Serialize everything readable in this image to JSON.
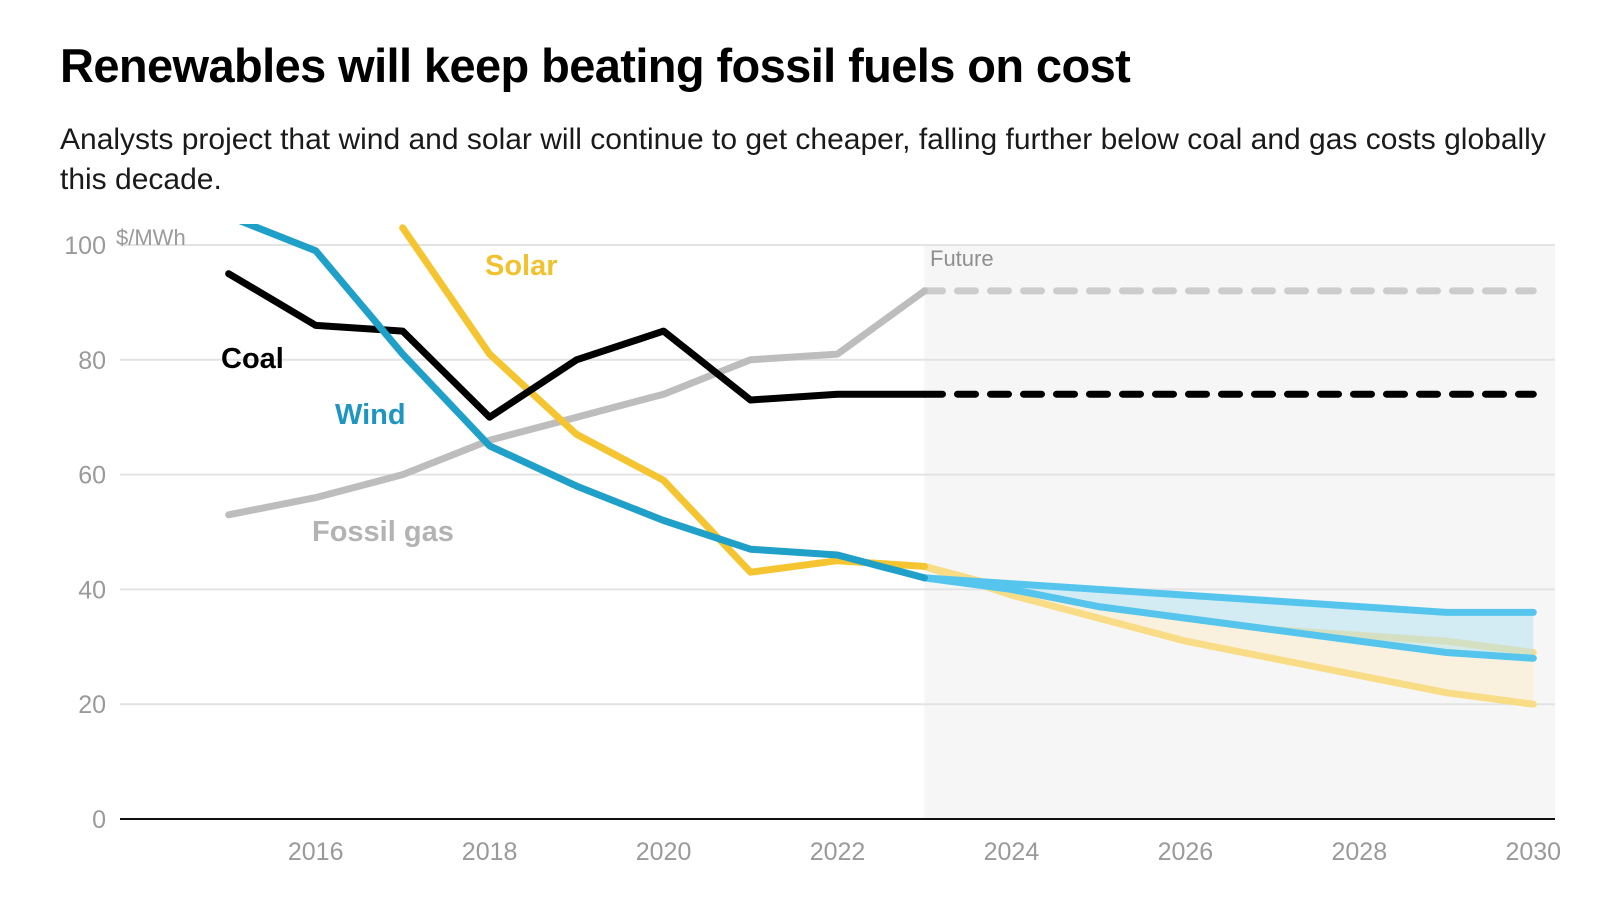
{
  "header": {
    "title": "Renewables will keep beating fossil fuels on cost",
    "subtitle": "Analysts project that wind and solar will continue to get cheaper, falling further below coal and gas costs globally this decade."
  },
  "chart_data": {
    "type": "line",
    "title": "Renewables will keep beating fossil fuels on cost",
    "subtitle": "Analysts project that wind and solar will continue to get cheaper, falling further below coal and gas costs globally this decade.",
    "ylabel": "$/MWh",
    "xlabel": "",
    "ylim": [
      0,
      100
    ],
    "xlim": [
      2013.75,
      2030.25
    ],
    "yticks": [
      0,
      20,
      40,
      60,
      80,
      100
    ],
    "ytick_labels": [
      "0",
      "20",
      "40",
      "60",
      "80",
      "100"
    ],
    "xticks": [
      2016,
      2018,
      2020,
      2022,
      2024,
      2026,
      2028,
      2030
    ],
    "xtick_labels": [
      "2016",
      "2018",
      "2020",
      "2022",
      "2024",
      "2026",
      "2028",
      "2030"
    ],
    "grid": true,
    "future_region": {
      "label": "Future",
      "start": 2023,
      "end": 2030
    },
    "series": [
      {
        "name": "Coal",
        "color": "#000000",
        "historical": {
          "x": [
            2015,
            2016,
            2017,
            2018,
            2019,
            2020,
            2021,
            2022,
            2023
          ],
          "y": [
            95,
            86,
            85,
            70,
            80,
            85,
            73,
            74,
            74
          ]
        },
        "projection": {
          "x": [
            2023,
            2030
          ],
          "y": [
            74,
            74
          ]
        }
      },
      {
        "name": "Fossil gas",
        "color": "#bdbdbd",
        "historical": {
          "x": [
            2015,
            2016,
            2017,
            2018,
            2019,
            2020,
            2021,
            2022,
            2023
          ],
          "y": [
            53,
            56,
            60,
            66,
            70,
            74,
            80,
            81,
            92
          ]
        },
        "projection": {
          "x": [
            2023,
            2030
          ],
          "y": [
            92,
            92
          ]
        }
      },
      {
        "name": "Solar",
        "color": "#f5c531",
        "historical": {
          "x": [
            2017,
            2018,
            2019,
            2020,
            2021,
            2022,
            2023
          ],
          "y": [
            103,
            81,
            67,
            59,
            43,
            45,
            44
          ]
        },
        "projection_range": {
          "x": [
            2023,
            2024,
            2025,
            2026,
            2027,
            2028,
            2029,
            2030
          ],
          "high": [
            44,
            40,
            37,
            35,
            33,
            32,
            31,
            29
          ],
          "low": [
            44,
            39,
            35,
            31,
            28,
            25,
            22,
            20
          ]
        }
      },
      {
        "name": "Wind",
        "color": "#1fa0c9",
        "historical": {
          "x": [
            2015,
            2016,
            2017,
            2018,
            2019,
            2020,
            2021,
            2022,
            2023
          ],
          "y": [
            105,
            99,
            81,
            65,
            58,
            52,
            47,
            46,
            42
          ]
        },
        "projection_range": {
          "x": [
            2023,
            2024,
            2025,
            2026,
            2027,
            2028,
            2029,
            2030
          ],
          "high": [
            42,
            41,
            40,
            39,
            38,
            37,
            36,
            36
          ],
          "low": [
            42,
            40,
            37,
            35,
            33,
            31,
            29,
            28
          ]
        }
      }
    ],
    "series_labels": [
      {
        "text": "Solar",
        "color": "#f2c12e"
      },
      {
        "text": "Coal",
        "color": "#000000"
      },
      {
        "text": "Wind",
        "color": "#1f96c1"
      },
      {
        "text": "Fossil gas",
        "color": "#b3b3b3"
      }
    ]
  }
}
